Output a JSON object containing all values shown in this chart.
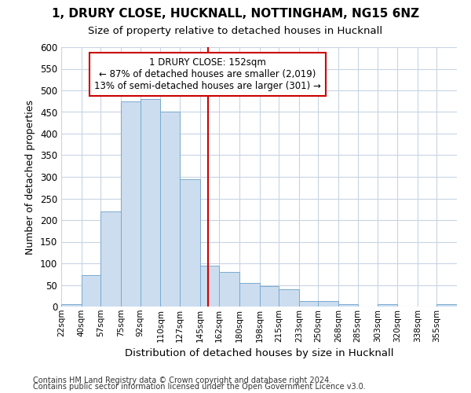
{
  "title1": "1, DRURY CLOSE, HUCKNALL, NOTTINGHAM, NG15 6NZ",
  "title2": "Size of property relative to detached houses in Hucknall",
  "xlabel": "Distribution of detached houses by size in Hucknall",
  "ylabel": "Number of detached properties",
  "bar_color": "#ccddef",
  "bar_edge_color": "#7aaacf",
  "grid_color": "#c8d4e4",
  "bins": [
    22,
    40,
    57,
    75,
    92,
    110,
    127,
    145,
    162,
    180,
    198,
    215,
    233,
    250,
    268,
    285,
    303,
    320,
    338,
    355,
    373
  ],
  "heights": [
    5,
    72,
    220,
    475,
    480,
    450,
    295,
    95,
    80,
    55,
    47,
    40,
    12,
    12,
    5,
    0,
    5,
    0,
    0,
    5
  ],
  "property_size": 152,
  "annotation_title": "1 DRURY CLOSE: 152sqm",
  "annotation_line1": "← 87% of detached houses are smaller (2,019)",
  "annotation_line2": "13% of semi-detached houses are larger (301) →",
  "vline_color": "#cc0000",
  "annotation_box_color": "#ffffff",
  "annotation_box_edge": "#cc0000",
  "ylim": [
    0,
    600
  ],
  "yticks": [
    0,
    50,
    100,
    150,
    200,
    250,
    300,
    350,
    400,
    450,
    500,
    550,
    600
  ],
  "footnote1": "Contains HM Land Registry data © Crown copyright and database right 2024.",
  "footnote2": "Contains public sector information licensed under the Open Government Licence v3.0.",
  "background_color": "#ffffff"
}
